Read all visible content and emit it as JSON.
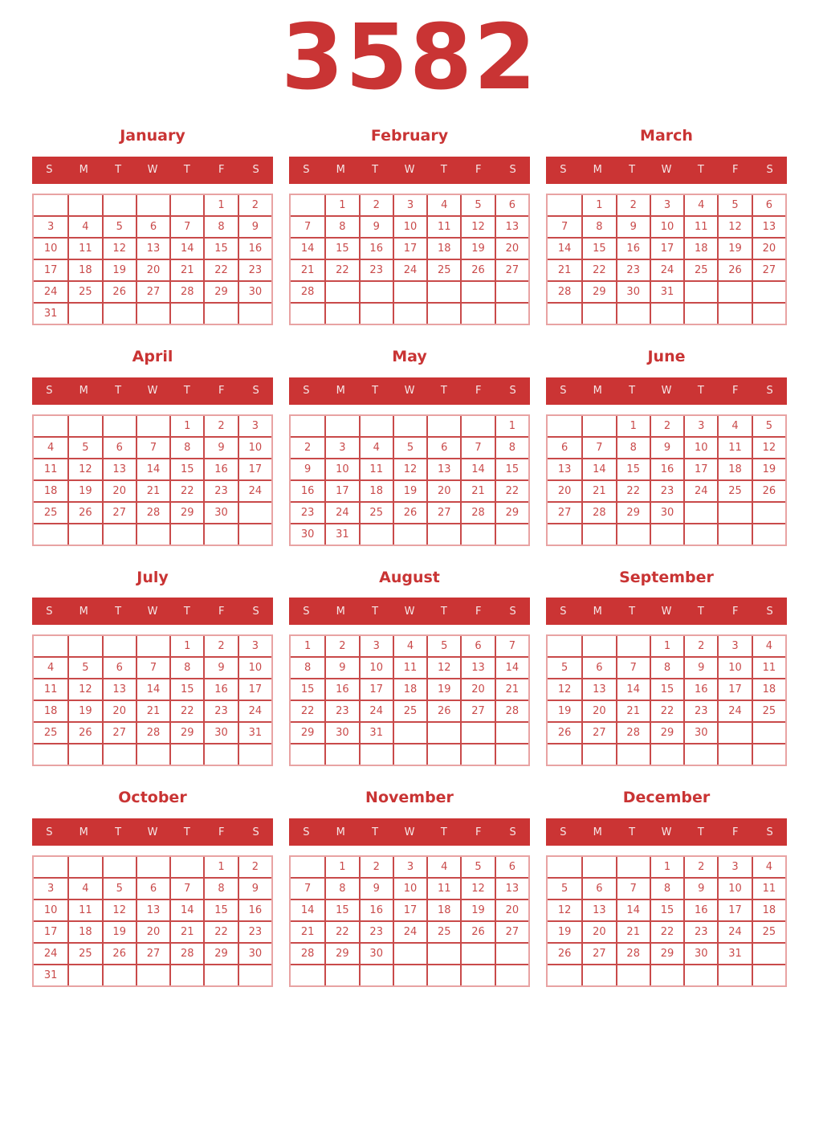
{
  "year": "3582",
  "day_headers": [
    "S",
    "M",
    "T",
    "W",
    "T",
    "F",
    "S"
  ],
  "colors": {
    "accent": "#cb3434",
    "title_red": "#c93434",
    "grid_line": "#c94a4a",
    "grid_outline": "#e8a3a3",
    "header_text": "#f5e6e6",
    "background": "#ffffff"
  },
  "months": [
    {
      "name": "January",
      "weeks": [
        [
          "",
          "",
          "",
          "",
          "",
          "1",
          "2"
        ],
        [
          "3",
          "4",
          "5",
          "6",
          "7",
          "8",
          "9"
        ],
        [
          "10",
          "11",
          "12",
          "13",
          "14",
          "15",
          "16"
        ],
        [
          "17",
          "18",
          "19",
          "20",
          "21",
          "22",
          "23"
        ],
        [
          "24",
          "25",
          "26",
          "27",
          "28",
          "29",
          "30"
        ],
        [
          "31",
          "",
          "",
          "",
          "",
          "",
          ""
        ]
      ]
    },
    {
      "name": "February",
      "weeks": [
        [
          "",
          "1",
          "2",
          "3",
          "4",
          "5",
          "6"
        ],
        [
          "7",
          "8",
          "9",
          "10",
          "11",
          "12",
          "13"
        ],
        [
          "14",
          "15",
          "16",
          "17",
          "18",
          "19",
          "20"
        ],
        [
          "21",
          "22",
          "23",
          "24",
          "25",
          "26",
          "27"
        ],
        [
          "28",
          "",
          "",
          "",
          "",
          "",
          ""
        ],
        [
          "",
          "",
          "",
          "",
          "",
          "",
          ""
        ]
      ]
    },
    {
      "name": "March",
      "weeks": [
        [
          "",
          "1",
          "2",
          "3",
          "4",
          "5",
          "6"
        ],
        [
          "7",
          "8",
          "9",
          "10",
          "11",
          "12",
          "13"
        ],
        [
          "14",
          "15",
          "16",
          "17",
          "18",
          "19",
          "20"
        ],
        [
          "21",
          "22",
          "23",
          "24",
          "25",
          "26",
          "27"
        ],
        [
          "28",
          "29",
          "30",
          "31",
          "",
          "",
          ""
        ],
        [
          "",
          "",
          "",
          "",
          "",
          "",
          ""
        ]
      ]
    },
    {
      "name": "April",
      "weeks": [
        [
          "",
          "",
          "",
          "",
          "1",
          "2",
          "3"
        ],
        [
          "4",
          "5",
          "6",
          "7",
          "8",
          "9",
          "10"
        ],
        [
          "11",
          "12",
          "13",
          "14",
          "15",
          "16",
          "17"
        ],
        [
          "18",
          "19",
          "20",
          "21",
          "22",
          "23",
          "24"
        ],
        [
          "25",
          "26",
          "27",
          "28",
          "29",
          "30",
          ""
        ],
        [
          "",
          "",
          "",
          "",
          "",
          "",
          ""
        ]
      ]
    },
    {
      "name": "May",
      "weeks": [
        [
          "",
          "",
          "",
          "",
          "",
          "",
          "1"
        ],
        [
          "2",
          "3",
          "4",
          "5",
          "6",
          "7",
          "8"
        ],
        [
          "9",
          "10",
          "11",
          "12",
          "13",
          "14",
          "15"
        ],
        [
          "16",
          "17",
          "18",
          "19",
          "20",
          "21",
          "22"
        ],
        [
          "23",
          "24",
          "25",
          "26",
          "27",
          "28",
          "29"
        ],
        [
          "30",
          "31",
          "",
          "",
          "",
          "",
          ""
        ]
      ]
    },
    {
      "name": "June",
      "weeks": [
        [
          "",
          "",
          "1",
          "2",
          "3",
          "4",
          "5"
        ],
        [
          "6",
          "7",
          "8",
          "9",
          "10",
          "11",
          "12"
        ],
        [
          "13",
          "14",
          "15",
          "16",
          "17",
          "18",
          "19"
        ],
        [
          "20",
          "21",
          "22",
          "23",
          "24",
          "25",
          "26"
        ],
        [
          "27",
          "28",
          "29",
          "30",
          "",
          "",
          ""
        ],
        [
          "",
          "",
          "",
          "",
          "",
          "",
          ""
        ]
      ]
    },
    {
      "name": "July",
      "weeks": [
        [
          "",
          "",
          "",
          "",
          "1",
          "2",
          "3"
        ],
        [
          "4",
          "5",
          "6",
          "7",
          "8",
          "9",
          "10"
        ],
        [
          "11",
          "12",
          "13",
          "14",
          "15",
          "16",
          "17"
        ],
        [
          "18",
          "19",
          "20",
          "21",
          "22",
          "23",
          "24"
        ],
        [
          "25",
          "26",
          "27",
          "28",
          "29",
          "30",
          "31"
        ],
        [
          "",
          "",
          "",
          "",
          "",
          "",
          ""
        ]
      ]
    },
    {
      "name": "August",
      "weeks": [
        [
          "1",
          "2",
          "3",
          "4",
          "5",
          "6",
          "7"
        ],
        [
          "8",
          "9",
          "10",
          "11",
          "12",
          "13",
          "14"
        ],
        [
          "15",
          "16",
          "17",
          "18",
          "19",
          "20",
          "21"
        ],
        [
          "22",
          "23",
          "24",
          "25",
          "26",
          "27",
          "28"
        ],
        [
          "29",
          "30",
          "31",
          "",
          "",
          "",
          ""
        ],
        [
          "",
          "",
          "",
          "",
          "",
          "",
          ""
        ]
      ]
    },
    {
      "name": "September",
      "weeks": [
        [
          "",
          "",
          "",
          "1",
          "2",
          "3",
          "4"
        ],
        [
          "5",
          "6",
          "7",
          "8",
          "9",
          "10",
          "11"
        ],
        [
          "12",
          "13",
          "14",
          "15",
          "16",
          "17",
          "18"
        ],
        [
          "19",
          "20",
          "21",
          "22",
          "23",
          "24",
          "25"
        ],
        [
          "26",
          "27",
          "28",
          "29",
          "30",
          "",
          ""
        ],
        [
          "",
          "",
          "",
          "",
          "",
          "",
          ""
        ]
      ]
    },
    {
      "name": "October",
      "weeks": [
        [
          "",
          "",
          "",
          "",
          "",
          "1",
          "2"
        ],
        [
          "3",
          "4",
          "5",
          "6",
          "7",
          "8",
          "9"
        ],
        [
          "10",
          "11",
          "12",
          "13",
          "14",
          "15",
          "16"
        ],
        [
          "17",
          "18",
          "19",
          "20",
          "21",
          "22",
          "23"
        ],
        [
          "24",
          "25",
          "26",
          "27",
          "28",
          "29",
          "30"
        ],
        [
          "31",
          "",
          "",
          "",
          "",
          "",
          ""
        ]
      ]
    },
    {
      "name": "November",
      "weeks": [
        [
          "",
          "1",
          "2",
          "3",
          "4",
          "5",
          "6"
        ],
        [
          "7",
          "8",
          "9",
          "10",
          "11",
          "12",
          "13"
        ],
        [
          "14",
          "15",
          "16",
          "17",
          "18",
          "19",
          "20"
        ],
        [
          "21",
          "22",
          "23",
          "24",
          "25",
          "26",
          "27"
        ],
        [
          "28",
          "29",
          "30",
          "",
          "",
          "",
          ""
        ],
        [
          "",
          "",
          "",
          "",
          "",
          "",
          ""
        ]
      ]
    },
    {
      "name": "December",
      "weeks": [
        [
          "",
          "",
          "",
          "1",
          "2",
          "3",
          "4"
        ],
        [
          "5",
          "6",
          "7",
          "8",
          "9",
          "10",
          "11"
        ],
        [
          "12",
          "13",
          "14",
          "15",
          "16",
          "17",
          "18"
        ],
        [
          "19",
          "20",
          "21",
          "22",
          "23",
          "24",
          "25"
        ],
        [
          "26",
          "27",
          "28",
          "29",
          "30",
          "31",
          ""
        ],
        [
          "",
          "",
          "",
          "",
          "",
          "",
          ""
        ]
      ]
    }
  ]
}
